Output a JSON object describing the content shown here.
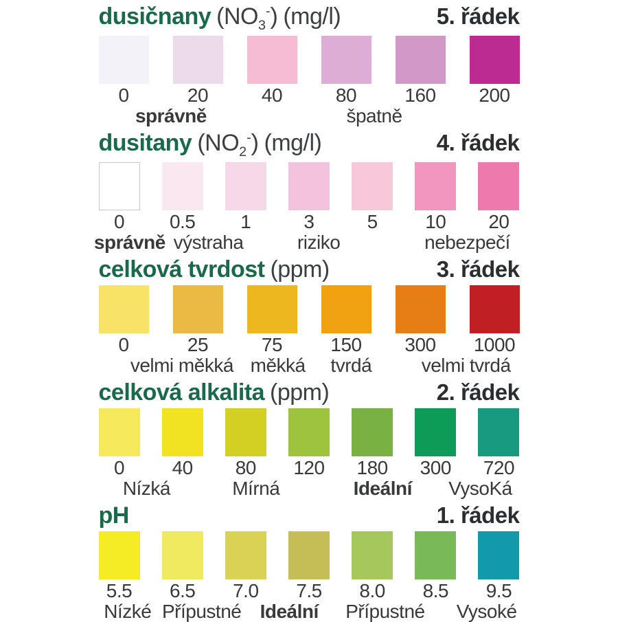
{
  "chart_data": {
    "type": "table",
    "rows": [
      {
        "id": "dusicnany",
        "title": "dusičnany",
        "formula": {
          "pre": "(NO",
          "sub": "3",
          "sup": "-",
          "post": ")"
        },
        "unit": "(mg/l)",
        "row_label": "5. řádek",
        "swatch_width": 73,
        "swatches": [
          {
            "value": "0",
            "color": "#f3f2f8"
          },
          {
            "value": "20",
            "color": "#eedbe9"
          },
          {
            "value": "40",
            "color": "#f5bcd4"
          },
          {
            "value": "80",
            "color": "#deadd5"
          },
          {
            "value": "160",
            "color": "#d299c7"
          },
          {
            "value": "200",
            "color": "#bc2b92"
          }
        ],
        "sublabels": [
          {
            "text": "správně",
            "pos": 17.2,
            "bold": true
          },
          {
            "text": "špatně",
            "pos": 65.5,
            "bold": false
          }
        ]
      },
      {
        "id": "dusitany",
        "title": "dusitany",
        "formula": {
          "pre": "(NO",
          "sub": "2",
          "sup": "-",
          "post": ")"
        },
        "unit": "(mg/l)",
        "row_label": "4. řádek",
        "swatch_width": 60,
        "swatches": [
          {
            "value": "0",
            "color": "#ffffff",
            "border": "#c6c6c6"
          },
          {
            "value": "0.5",
            "color": "#fae7f0"
          },
          {
            "value": "1",
            "color": "#f6d9e8"
          },
          {
            "value": "3",
            "color": "#f3c3de"
          },
          {
            "value": "5",
            "color": "#f6c8da"
          },
          {
            "value": "10",
            "color": "#f296be"
          },
          {
            "value": "20",
            "color": "#ee79ad"
          }
        ],
        "sublabels": [
          {
            "text": "správně",
            "pos": 7.4,
            "bold": true
          },
          {
            "text": "výstraha",
            "pos": 26.1,
            "bold": false
          },
          {
            "text": "riziko",
            "pos": 52.3,
            "bold": false
          },
          {
            "text": "nebezpečí",
            "pos": 87.6,
            "bold": false
          }
        ]
      },
      {
        "id": "tvrdost",
        "title": "celková tvrdost",
        "unit": "(ppm)",
        "row_label": "3. řádek",
        "swatch_width": 73,
        "swatches": [
          {
            "value": "0",
            "color": "#f9e268"
          },
          {
            "value": "25",
            "color": "#eaba45"
          },
          {
            "value": "75",
            "color": "#edb71f"
          },
          {
            "value": "150",
            "color": "#f0a210"
          },
          {
            "value": "300",
            "color": "#e67d15"
          },
          {
            "value": "1000",
            "color": "#c01f24"
          }
        ],
        "sublabels": [
          {
            "text": "velmi měkká",
            "pos": 19.8,
            "bold": false
          },
          {
            "text": "měkká",
            "pos": 42.6,
            "bold": false
          },
          {
            "text": "tvrdá",
            "pos": 60.0,
            "bold": false
          },
          {
            "text": "velmi tvrdá",
            "pos": 87.3,
            "bold": false
          }
        ]
      },
      {
        "id": "alkalita",
        "title": "celková alkalita",
        "unit": "(ppm)",
        "row_label": "2. řádek",
        "swatch_width": 60,
        "swatches": [
          {
            "value": "0",
            "color": "#f6e95c"
          },
          {
            "value": "40",
            "color": "#f1e321"
          },
          {
            "value": "80",
            "color": "#d3cf23"
          },
          {
            "value": "120",
            "color": "#9ec33e"
          },
          {
            "value": "180",
            "color": "#79b243"
          },
          {
            "value": "300",
            "color": "#0d9b57"
          },
          {
            "value": "720",
            "color": "#189a80"
          }
        ],
        "sublabels": [
          {
            "text": "Nízká",
            "pos": 11.4,
            "bold": false
          },
          {
            "text": "Mírná",
            "pos": 37.4,
            "bold": false
          },
          {
            "text": "Ideální",
            "pos": 67.5,
            "bold": true
          },
          {
            "text": "VysoKá",
            "pos": 90.7,
            "bold": false
          }
        ]
      },
      {
        "id": "ph",
        "title": "pH",
        "unit": "",
        "row_label": "1. řádek",
        "swatch_width": 60,
        "swatches": [
          {
            "value": "5.5",
            "color": "#f6ec25"
          },
          {
            "value": "6.5",
            "color": "#f0ea60"
          },
          {
            "value": "7.0",
            "color": "#d9d254"
          },
          {
            "value": "7.5",
            "color": "#c5bd55"
          },
          {
            "value": "8.0",
            "color": "#a5c75c"
          },
          {
            "value": "8.5",
            "color": "#79b958"
          },
          {
            "value": "9.5",
            "color": "#129aab"
          }
        ],
        "sublabels": [
          {
            "text": "Nízké",
            "pos": 6.9,
            "bold": false
          },
          {
            "text": "Přípustné",
            "pos": 24.5,
            "bold": false
          },
          {
            "text": "Ideální",
            "pos": 45.3,
            "bold": true
          },
          {
            "text": "Přípustné",
            "pos": 68.1,
            "bold": false
          },
          {
            "text": "Vysoké",
            "pos": 92.2,
            "bold": false
          }
        ]
      }
    ]
  }
}
